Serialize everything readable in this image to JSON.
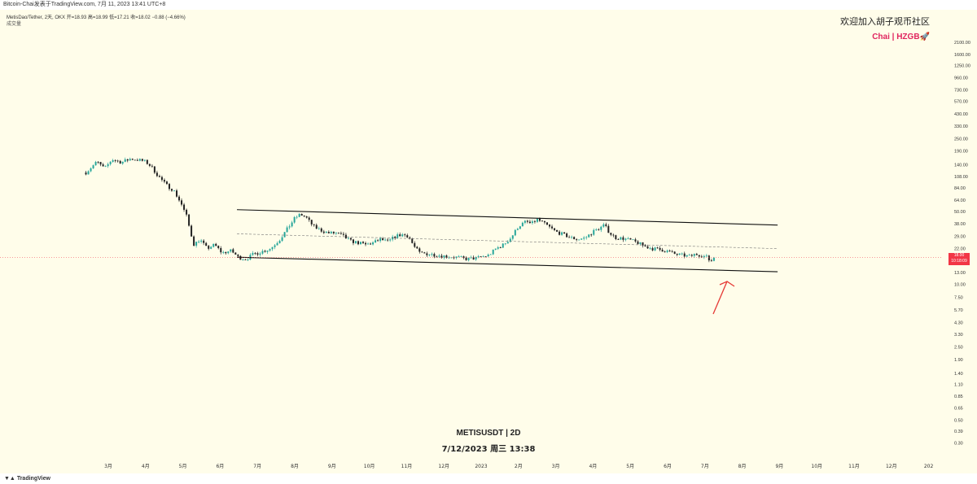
{
  "header": {
    "top_line": "Bitcoin-Chai发表于TradingView.com, 7月 11, 2023 13:41 UTC+8",
    "symbol_line": "MetisDao/Tether, 2天, OKX  开=18.93 高=18.99 低=17.21 收=18.02 −0.88 (−4.66%)",
    "volume_label": "成交量"
  },
  "watermark": {
    "cn": "欢迎加入胡子观币社区",
    "brand": "Chai | HZGB🚀"
  },
  "center_title": {
    "symbol": "METISUSDT | 2D",
    "datetime": "7/12/2023 周三 13:38"
  },
  "footer": {
    "logo": "TradingView"
  },
  "price_tag": {
    "price": "18.00",
    "countdown": "10:18:09"
  },
  "colors": {
    "up": "#26a69a",
    "down": "#222222",
    "line": "#111111",
    "dashed": "#777777",
    "last_price": "#f23645",
    "arrow": "#e53935",
    "background": "#fffdea"
  },
  "chart_data": {
    "type": "candlestick",
    "scale": "log",
    "title": "METISUSDT | 2D",
    "ylim": [
      0.22,
      3000
    ],
    "y_ticks": [
      "2100.00",
      "1600.00",
      "1250.00",
      "960.00",
      "730.00",
      "570.00",
      "430.00",
      "330.00",
      "250.00",
      "190.00",
      "140.00",
      "108.00",
      "84.00",
      "64.00",
      "50.00",
      "38.00",
      "29.00",
      "22.00",
      "13.00",
      "10.00",
      "7.50",
      "5.70",
      "4.30",
      "3.30",
      "2.50",
      "1.90",
      "1.40",
      "1.10",
      "0.85",
      "0.65",
      "0.50",
      "0.39",
      "0.30"
    ],
    "y_tick_values": [
      2100,
      1600,
      1250,
      960,
      730,
      570,
      430,
      330,
      250,
      190,
      140,
      108,
      84,
      64,
      50,
      38,
      29,
      22,
      13,
      10,
      7.5,
      5.7,
      4.3,
      3.3,
      2.5,
      1.9,
      1.4,
      1.1,
      0.85,
      0.65,
      0.5,
      0.39,
      0.3
    ],
    "x_ticks": [
      "3月",
      "4月",
      "5月",
      "6月",
      "7月",
      "8月",
      "9月",
      "10月",
      "11月",
      "12月",
      "2023",
      "2月",
      "3月",
      "4月",
      "5月",
      "6月",
      "7月",
      "8月",
      "9月",
      "10月",
      "11月",
      "12月",
      "202"
    ],
    "x_tick_months_from_start": [
      0,
      1,
      2,
      3,
      4,
      5,
      6,
      7,
      8,
      9,
      10,
      11,
      12,
      13,
      14,
      15,
      16,
      17,
      18,
      19,
      20,
      21,
      22
    ],
    "close_path": [
      [
        -0.6,
        118
      ],
      [
        -0.3,
        150
      ],
      [
        -0.1,
        128
      ],
      [
        0.1,
        158
      ],
      [
        0.35,
        148
      ],
      [
        0.6,
        160
      ],
      [
        0.85,
        155
      ],
      [
        1.0,
        150
      ],
      [
        1.15,
        135
      ],
      [
        1.35,
        108
      ],
      [
        1.55,
        90
      ],
      [
        1.75,
        80
      ],
      [
        1.95,
        60
      ],
      [
        2.1,
        45
      ],
      [
        2.2,
        32
      ],
      [
        2.3,
        24
      ],
      [
        2.45,
        27
      ],
      [
        2.65,
        22
      ],
      [
        2.85,
        24
      ],
      [
        3.05,
        20
      ],
      [
        3.3,
        21
      ],
      [
        3.5,
        18
      ],
      [
        3.7,
        17.5
      ],
      [
        3.9,
        19.5
      ],
      [
        4.1,
        20.5
      ],
      [
        4.35,
        22
      ],
      [
        4.6,
        27
      ],
      [
        4.8,
        34
      ],
      [
        5.0,
        43
      ],
      [
        5.15,
        47
      ],
      [
        5.3,
        44
      ],
      [
        5.5,
        36
      ],
      [
        5.7,
        33
      ],
      [
        5.9,
        31
      ],
      [
        6.1,
        31
      ],
      [
        6.3,
        29
      ],
      [
        6.5,
        26
      ],
      [
        6.7,
        25
      ],
      [
        6.9,
        24
      ],
      [
        7.1,
        25
      ],
      [
        7.3,
        27
      ],
      [
        7.5,
        25.5
      ],
      [
        7.7,
        29
      ],
      [
        7.9,
        30
      ],
      [
        8.05,
        29
      ],
      [
        8.2,
        23
      ],
      [
        8.35,
        20
      ],
      [
        8.6,
        19.5
      ],
      [
        8.85,
        19
      ],
      [
        9.1,
        18.5
      ],
      [
        9.35,
        18.2
      ],
      [
        9.6,
        17.5
      ],
      [
        9.85,
        17.8
      ],
      [
        10.0,
        18.3
      ],
      [
        10.2,
        19
      ],
      [
        10.4,
        22
      ],
      [
        10.6,
        24
      ],
      [
        10.8,
        28
      ],
      [
        11.0,
        36
      ],
      [
        11.2,
        40
      ],
      [
        11.35,
        38
      ],
      [
        11.5,
        42
      ],
      [
        11.65,
        39
      ],
      [
        11.8,
        36
      ],
      [
        12.0,
        32
      ],
      [
        12.2,
        30
      ],
      [
        12.4,
        28
      ],
      [
        12.6,
        27
      ],
      [
        12.8,
        28
      ],
      [
        13.0,
        32
      ],
      [
        13.2,
        35
      ],
      [
        13.3,
        37
      ],
      [
        13.45,
        31
      ],
      [
        13.6,
        28
      ],
      [
        13.8,
        27.5
      ],
      [
        14.0,
        26.5
      ],
      [
        14.2,
        25
      ],
      [
        14.4,
        23
      ],
      [
        14.6,
        22
      ],
      [
        14.8,
        21.5
      ],
      [
        15.0,
        20.8
      ],
      [
        15.2,
        19.5
      ],
      [
        15.4,
        19
      ],
      [
        15.6,
        18.5
      ],
      [
        15.75,
        19.5
      ],
      [
        15.9,
        19
      ],
      [
        16.05,
        18.2
      ],
      [
        16.15,
        16.5
      ],
      [
        16.25,
        18.02
      ]
    ],
    "annotations": {
      "upper_channel": [
        [
          3.45,
          52
        ],
        [
          17.95,
          37
        ]
      ],
      "lower_channel": [
        [
          3.45,
          18.2
        ],
        [
          17.95,
          13.2
        ]
      ],
      "midline_dashed": [
        [
          3.45,
          30.5
        ],
        [
          17.95,
          22
        ]
      ],
      "last_price": 18.02,
      "arrow": "points up to latest candle near lower channel"
    }
  }
}
